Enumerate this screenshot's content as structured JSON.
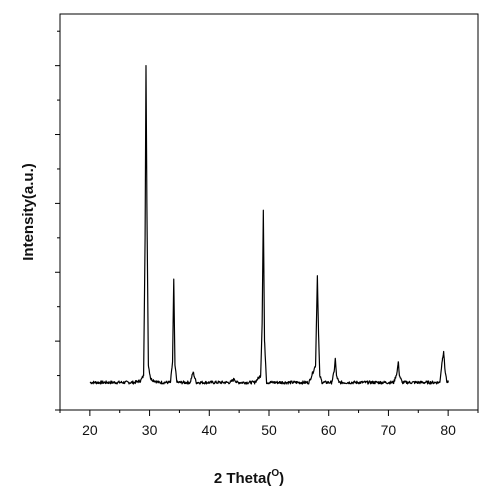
{
  "chart_data": {
    "type": "line",
    "title": "",
    "xlabel": "2 Theta",
    "xlabel_superscript": "O",
    "xlabel_open": "(",
    "xlabel_close": ")",
    "ylabel": "Intensity(a.u.)",
    "xlim": [
      15,
      85
    ],
    "ylim": [
      0,
      115
    ],
    "x_ticks": [
      20,
      30,
      40,
      50,
      60,
      70,
      80
    ],
    "y_ticks_labeled": false,
    "grid": false,
    "line_color": "#000000",
    "background": 8,
    "series": [
      {
        "x": [
          20,
          27.5,
          28.5,
          29.0,
          29.25,
          29.4,
          29.55,
          29.8,
          30.2,
          31.5,
          33.5,
          33.85,
          34.05,
          34.25,
          34.6,
          36.8,
          37.3,
          37.8,
          43.5,
          44.2,
          44.6,
          47.6,
          48.6,
          48.85,
          49.05,
          49.25,
          49.6,
          51.5,
          56.7,
          57.8,
          58.1,
          58.3,
          58.5,
          58.9,
          60.5,
          60.9,
          61.1,
          61.3,
          61.7,
          70.9,
          71.45,
          71.65,
          71.85,
          72.3,
          78.6,
          79.05,
          79.25,
          79.45,
          79.8,
          80
        ]
      }
    ],
    "series_y": [
      8,
      8,
      8.5,
      10,
      50,
      100,
      60,
      13,
      9,
      8,
      8,
      14,
      38,
      13,
      8,
      8,
      11,
      8,
      8,
      9,
      8,
      8,
      10,
      25,
      58,
      20,
      8,
      8,
      8,
      13,
      39,
      22,
      10,
      8,
      8,
      11,
      15,
      10,
      8,
      8,
      11,
      14,
      10,
      8,
      8,
      15,
      17,
      12,
      8,
      8
    ]
  }
}
